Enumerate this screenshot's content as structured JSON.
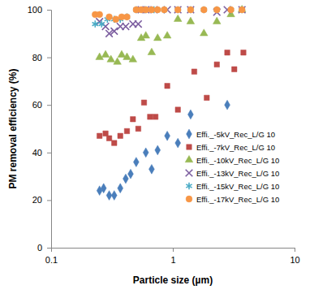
{
  "chart_data": {
    "type": "scatter",
    "x_label": "Particle size (µm)",
    "y_label": "PM removal efficiency (%)",
    "log": "x",
    "grid": false,
    "legend": "lower right",
    "xlim": [
      0.1,
      10
    ],
    "xticks": [
      0.1,
      1,
      10
    ],
    "ylim": [
      0,
      100
    ],
    "yticks": [
      0,
      20,
      40,
      60,
      80,
      100
    ],
    "series": [
      {
        "name": "Effi._-5kV_Rec_L/G 10",
        "color": "#4a7ebb",
        "marker": "diamond",
        "x": [
          0.25,
          0.27,
          0.3,
          0.33,
          0.37,
          0.41,
          0.45,
          0.5,
          0.6,
          0.67,
          0.75,
          0.9,
          1.1,
          1.4,
          2.8
        ],
        "values": [
          24,
          25,
          22,
          22,
          25,
          29,
          31,
          36,
          40,
          33,
          41,
          47,
          44,
          56,
          60
        ]
      },
      {
        "name": "Effi._-7kV_Rec_L/G 10",
        "color": "#be4b48",
        "marker": "square",
        "x": [
          0.25,
          0.28,
          0.3,
          0.33,
          0.37,
          0.42,
          0.47,
          0.52,
          0.58,
          0.65,
          0.72,
          0.9,
          1.1,
          1.5,
          1.9,
          2.3,
          2.8,
          3.2,
          3.8
        ],
        "values": [
          47,
          48,
          46,
          44,
          47,
          49,
          54,
          50,
          61,
          55,
          55,
          68,
          58,
          74,
          63,
          77,
          82,
          75,
          82
        ]
      },
      {
        "name": "Effi._-10kV_Rec_L/G 10",
        "color": "#98b954",
        "marker": "triangle",
        "x": [
          0.25,
          0.28,
          0.31,
          0.35,
          0.38,
          0.42,
          0.47,
          0.55,
          0.6,
          0.67,
          0.75,
          0.9,
          1.1,
          1.4,
          1.8,
          2.3,
          3,
          3.7
        ],
        "values": [
          80,
          81,
          79,
          78,
          81,
          80,
          79,
          88,
          89,
          82,
          88,
          89,
          96,
          95,
          90,
          95,
          98,
          100
        ]
      },
      {
        "name": "Effi._-13kV_Rec_L/G 10",
        "color": "#7d5fa0",
        "marker": "x",
        "x": [
          0.25,
          0.28,
          0.3,
          0.33,
          0.37,
          0.41,
          0.47,
          0.52,
          0.55,
          0.6,
          0.7,
          0.9,
          1.1,
          1.4,
          2.3,
          2.8,
          3.7
        ],
        "values": [
          95,
          93,
          90,
          91,
          93,
          93,
          94,
          94,
          100,
          100,
          100,
          100,
          100,
          100,
          99,
          100,
          100
        ]
      },
      {
        "name": "Effi._-15kV_Rec_L/G 10",
        "color": "#4bacc6",
        "marker": "asterisk",
        "x": [
          0.23,
          0.26,
          0.29,
          0.33,
          0.37,
          0.42,
          0.5,
          0.6,
          0.7,
          0.85,
          1.1,
          1.4,
          1.8,
          2.3,
          3,
          3.7
        ],
        "values": [
          94,
          94,
          96,
          96,
          96,
          97,
          100,
          100,
          100,
          100,
          100,
          100,
          100,
          100,
          100,
          100
        ]
      },
      {
        "name": "Effi._-17kV_Rec_L/G 10",
        "color": "#f79646",
        "marker": "circle",
        "x": [
          0.23,
          0.25,
          0.3,
          0.34,
          0.38,
          0.42,
          0.5,
          0.55,
          0.6,
          0.67,
          0.75,
          0.85,
          1.1,
          1.4,
          1.8,
          2.3,
          3,
          3.7
        ],
        "values": [
          98,
          98,
          97,
          96,
          97,
          97,
          100,
          100,
          100,
          100,
          100,
          100,
          100,
          100,
          100,
          100,
          100,
          100
        ]
      }
    ]
  }
}
